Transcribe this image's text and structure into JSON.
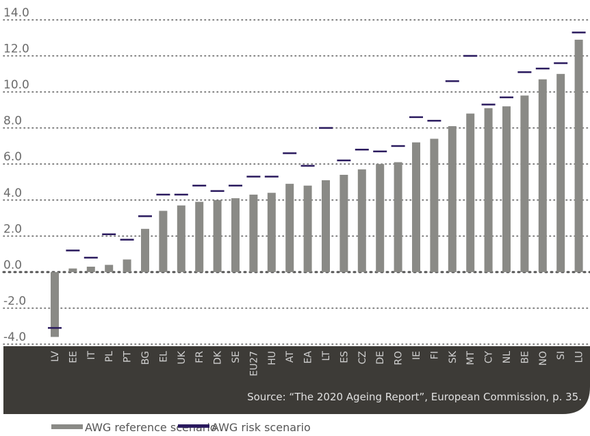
{
  "chart_data": {
    "type": "bar",
    "categories": [
      "LV",
      "EE",
      "IT",
      "PL",
      "PT",
      "BG",
      "EL",
      "UK",
      "FR",
      "DK",
      "SE",
      "EU27",
      "HU",
      "AT",
      "EA",
      "LT",
      "ES",
      "CZ",
      "DE",
      "RO",
      "IE",
      "FI",
      "SK",
      "MT",
      "CY",
      "NL",
      "BE",
      "NO",
      "SI",
      "LU"
    ],
    "series": [
      {
        "name": "AWG reference scenario",
        "color": "#8a8a86",
        "values": [
          -3.6,
          0.2,
          0.3,
          0.4,
          0.7,
          2.4,
          3.4,
          3.7,
          3.9,
          4.0,
          4.1,
          4.3,
          4.4,
          4.9,
          4.8,
          5.1,
          5.4,
          5.7,
          6.0,
          6.1,
          7.2,
          7.4,
          8.1,
          8.8,
          9.1,
          9.2,
          9.8,
          10.7,
          11.0,
          12.9
        ]
      },
      {
        "name": "AWG risk scenario",
        "color": "#2a1a5e",
        "values": [
          -3.1,
          1.2,
          0.8,
          2.1,
          1.8,
          3.1,
          4.3,
          4.3,
          4.8,
          4.5,
          4.8,
          5.3,
          5.3,
          6.6,
          5.9,
          8.0,
          6.2,
          6.8,
          6.7,
          7.0,
          8.6,
          8.4,
          10.6,
          12.0,
          9.3,
          9.7,
          11.1,
          11.3,
          11.6,
          13.3
        ]
      }
    ],
    "ylim": [
      -4,
      14
    ],
    "yticks": [
      {
        "value": -4,
        "label": "-4.0"
      },
      {
        "value": -2,
        "label": "-2.0"
      },
      {
        "value": 0,
        "label": "0.0"
      },
      {
        "value": 2,
        "label": "2.0"
      },
      {
        "value": 4,
        "label": "4.0"
      },
      {
        "value": 6,
        "label": "6.0"
      },
      {
        "value": 8,
        "label": "8.0"
      },
      {
        "value": 10,
        "label": "10.0"
      },
      {
        "value": 12,
        "label": "12.0"
      },
      {
        "value": 14,
        "label": "14.0"
      }
    ],
    "grid": true,
    "source": "Source: “The 2020 Ageing Report”, European Commission, p. 35."
  }
}
